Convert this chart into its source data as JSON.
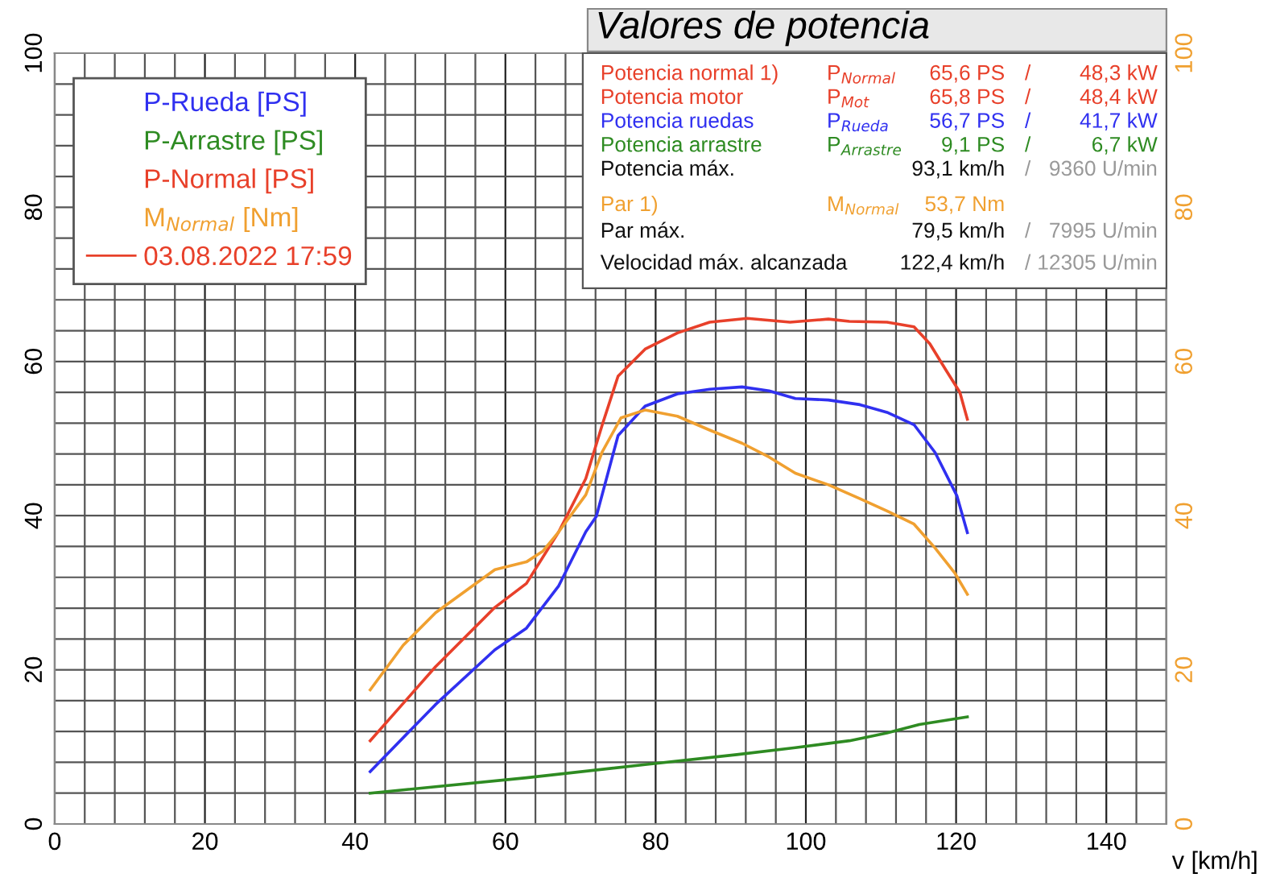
{
  "chart_data": {
    "type": "line",
    "title": "Valores de potencia",
    "xlabel": "v [km/h]",
    "xlim": [
      0,
      148
    ],
    "ylim": [
      0,
      100
    ],
    "y2lim": [
      0,
      100
    ],
    "xticks": [
      0,
      20,
      40,
      60,
      80,
      100,
      120,
      140
    ],
    "yticks": [
      0,
      20,
      40,
      60,
      80,
      100
    ],
    "y2ticks": [
      0,
      20,
      40,
      60,
      80,
      100
    ],
    "grid": true,
    "legend": "top left",
    "legend_title": "03.08.2022 17:59",
    "series": [
      {
        "name": "P-Rueda [PS]",
        "color": "#3030f0",
        "x": [
          42,
          50.7,
          58.6,
          62.8,
          67.1,
          70.7,
          72.1,
          75.0,
          78.6,
          82.9,
          87.2,
          91.5,
          95.1,
          98.6,
          103,
          107.2,
          110.8,
          114.4,
          117.2,
          120.1,
          121.5
        ],
        "values": [
          6.8,
          15.5,
          22.6,
          25.4,
          30.9,
          37.9,
          39.9,
          50.4,
          54.2,
          55.8,
          56.4,
          56.7,
          56.2,
          55.2,
          55.0,
          54.4,
          53.4,
          51.8,
          48.2,
          42.6,
          37.8
        ]
      },
      {
        "name": "P-Arrastre [PS]",
        "color": "#2e8b22",
        "x": [
          42,
          62.8,
          78.6,
          90.8,
          98.6,
          105.8,
          110.8,
          115.1,
          121.5
        ],
        "values": [
          4.0,
          6.0,
          7.7,
          9.0,
          9.9,
          10.8,
          11.8,
          12.9,
          13.9
        ]
      },
      {
        "name": "P-Normal [PS]",
        "color": "#e8402a",
        "x": [
          42,
          50.7,
          58.6,
          62.8,
          67.1,
          70.7,
          72.9,
          75.0,
          78.6,
          82.9,
          87.2,
          92.2,
          97.9,
          103,
          105.8,
          110.8,
          114.4,
          116.5,
          118.7,
          120.5,
          121.5
        ],
        "values": [
          10.8,
          20.4,
          28.1,
          31.2,
          37.9,
          44.8,
          51.8,
          58.1,
          61.6,
          63.7,
          65.1,
          65.6,
          65.1,
          65.5,
          65.2,
          65.1,
          64.5,
          62.3,
          58.8,
          56.0,
          52.5
        ]
      },
      {
        "name": "M$_{Normal}$ [Nm]",
        "color": "#f0a030",
        "axis": "y2",
        "x": [
          42,
          46.4,
          50.7,
          58.6,
          62.8,
          65.0,
          67.1,
          70.7,
          72.9,
          75.4,
          78.6,
          82.9,
          87.2,
          91.5,
          95.1,
          98.6,
          103,
          107.2,
          110.8,
          114.4,
          117.2,
          119.8,
          121.5
        ],
        "values": [
          17.4,
          23.2,
          27.4,
          33.0,
          34.0,
          35.4,
          37.9,
          42.7,
          48.3,
          52.7,
          53.7,
          52.9,
          51.1,
          49.4,
          47.6,
          45.5,
          44.0,
          42.2,
          40.6,
          38.9,
          35.8,
          32.6,
          29.8
        ]
      }
    ],
    "annotations": [
      "Potencia normal 1)",
      "P$_{Normal}$",
      "65,6 PS",
      "/",
      "48,3 kW",
      "Potencia motor",
      "P$_{Mot}$",
      "65,8 PS",
      "/",
      "48,4 kW",
      "Potencia ruedas",
      "P$_{Rueda}$",
      "56,7 PS",
      "/",
      "41,7 kW",
      "Potencia arrastre",
      "P$_{Arrastre}$",
      "9,1 PS",
      "/",
      "6,7 kW",
      "Potencia máx.",
      "93,1 km/h",
      "/",
      "9360 U/min",
      "Par 1)",
      "M$_{Normal}$",
      "53,7 Nm",
      "Par máx.",
      "79,5 km/h",
      "/",
      "7995 U/min",
      "Velocidad máx. alcanzada",
      "122,4 km/h",
      "/",
      "12305 U/min"
    ]
  }
}
